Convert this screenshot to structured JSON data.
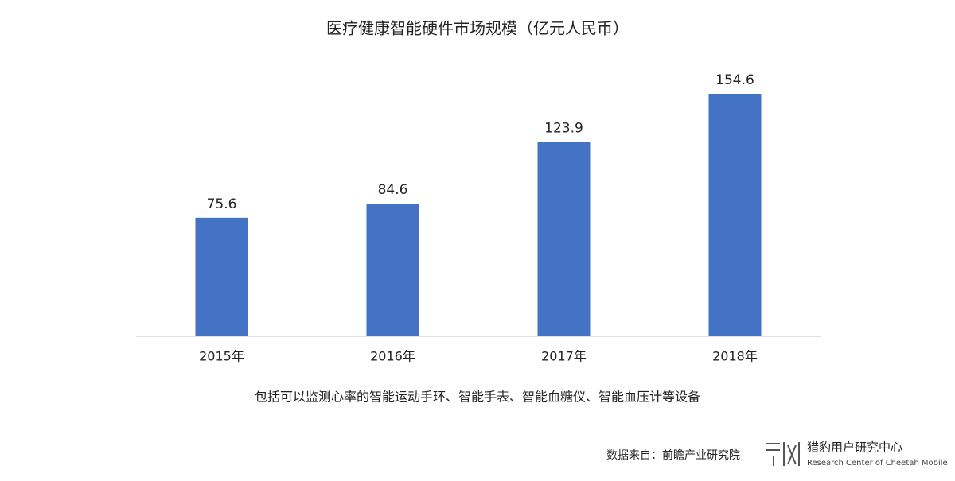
{
  "chart_data": {
    "type": "bar",
    "title": "医疗健康智能硬件市场规模（亿元人民币）",
    "categories": [
      "2015年",
      "2016年",
      "2017年",
      "2018年"
    ],
    "values": [
      75.6,
      84.6,
      123.9,
      154.6
    ],
    "color": "#4472c4",
    "note": "包括可以监测心率的智能运动手环、智能手表、智能血糖仪、智能血压计等设备",
    "source": "数据来自：前瞻产业研究院",
    "brand": "猎豹用户研究中心",
    "brand_en": "Research Center of Cheetah Mobile"
  }
}
